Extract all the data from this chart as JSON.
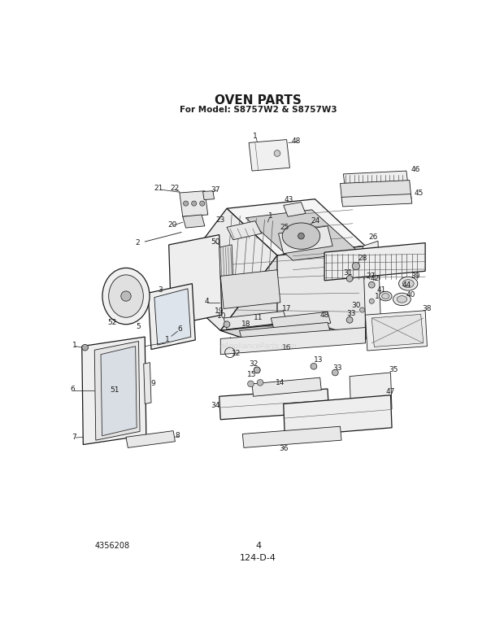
{
  "title": "OVEN PARTS",
  "subtitle": "For Model: S8757W2 & S8757W3",
  "bottom_left_text": "4356208",
  "bottom_center_text": "4",
  "bottom_center2_text": "124-D-4",
  "bg_color": "#ffffff",
  "title_fontsize": 11,
  "subtitle_fontsize": 7.5,
  "fig_width": 6.2,
  "fig_height": 7.88,
  "dpi": 100,
  "watermark_text": "eApplianceParts.com"
}
